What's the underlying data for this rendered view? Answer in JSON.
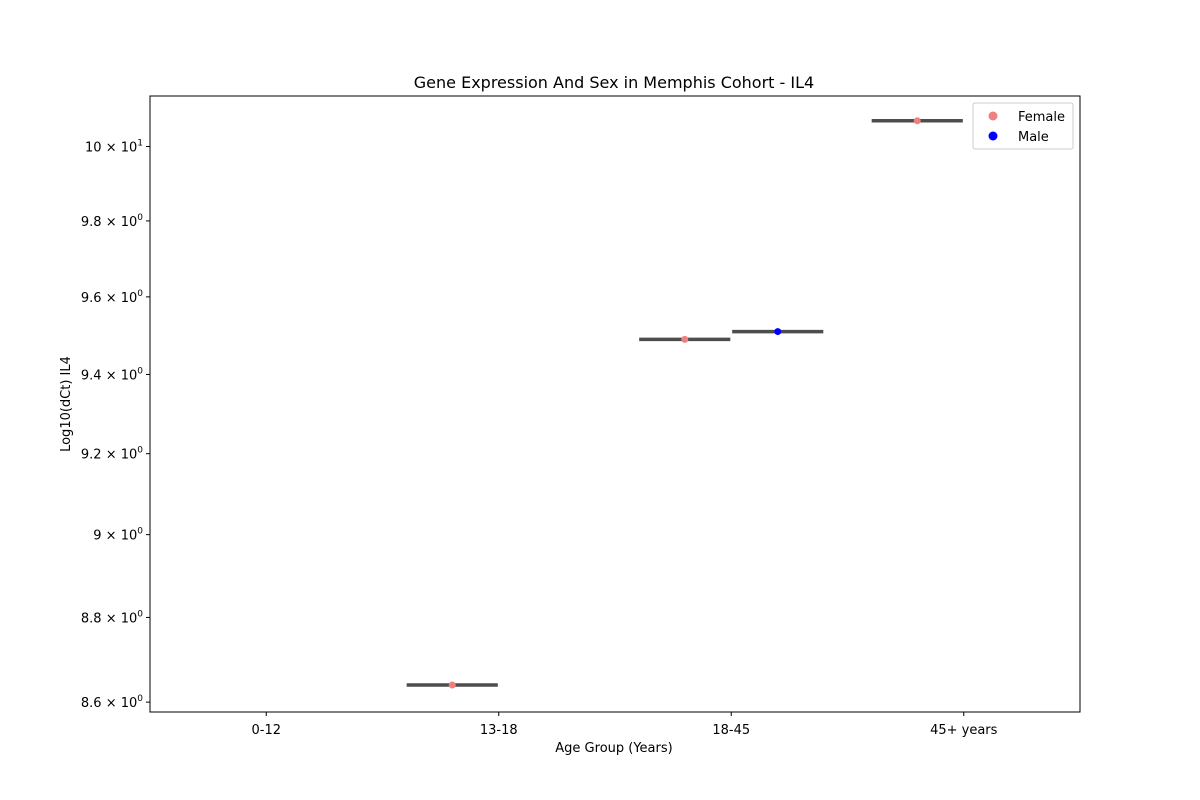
{
  "chart_data": {
    "type": "box",
    "title": "Gene Expression And Sex in Memphis Cohort - IL4",
    "xlabel": "Age Group (Years)",
    "ylabel": "Log10(dCt) IL4",
    "yscale": "log",
    "ylim": [
      8.577,
      10.138
    ],
    "categories": [
      "0-12",
      "13-18",
      "18-45",
      "45+ years"
    ],
    "yticks": [
      {
        "value": 8.6,
        "mantissa": "8.6",
        "exp": "0"
      },
      {
        "value": 8.8,
        "mantissa": "8.8",
        "exp": "0"
      },
      {
        "value": 9.0,
        "mantissa": "9",
        "exp": "0"
      },
      {
        "value": 9.2,
        "mantissa": "9.2",
        "exp": "0"
      },
      {
        "value": 9.4,
        "mantissa": "9.4",
        "exp": "0"
      },
      {
        "value": 9.6,
        "mantissa": "9.6",
        "exp": "0"
      },
      {
        "value": 9.8,
        "mantissa": "9.8",
        "exp": "0"
      },
      {
        "value": 10.0,
        "mantissa": "10",
        "exp": "1"
      }
    ],
    "series": [
      {
        "name": "Female",
        "color": "#f08080",
        "values": [
          null,
          8.64,
          9.49,
          10.07
        ]
      },
      {
        "name": "Male",
        "color": "#0000ff",
        "values": [
          null,
          null,
          9.51,
          null
        ]
      }
    ],
    "box_color": "#4d4d4d",
    "legend_position": "top-right",
    "grid": false
  }
}
